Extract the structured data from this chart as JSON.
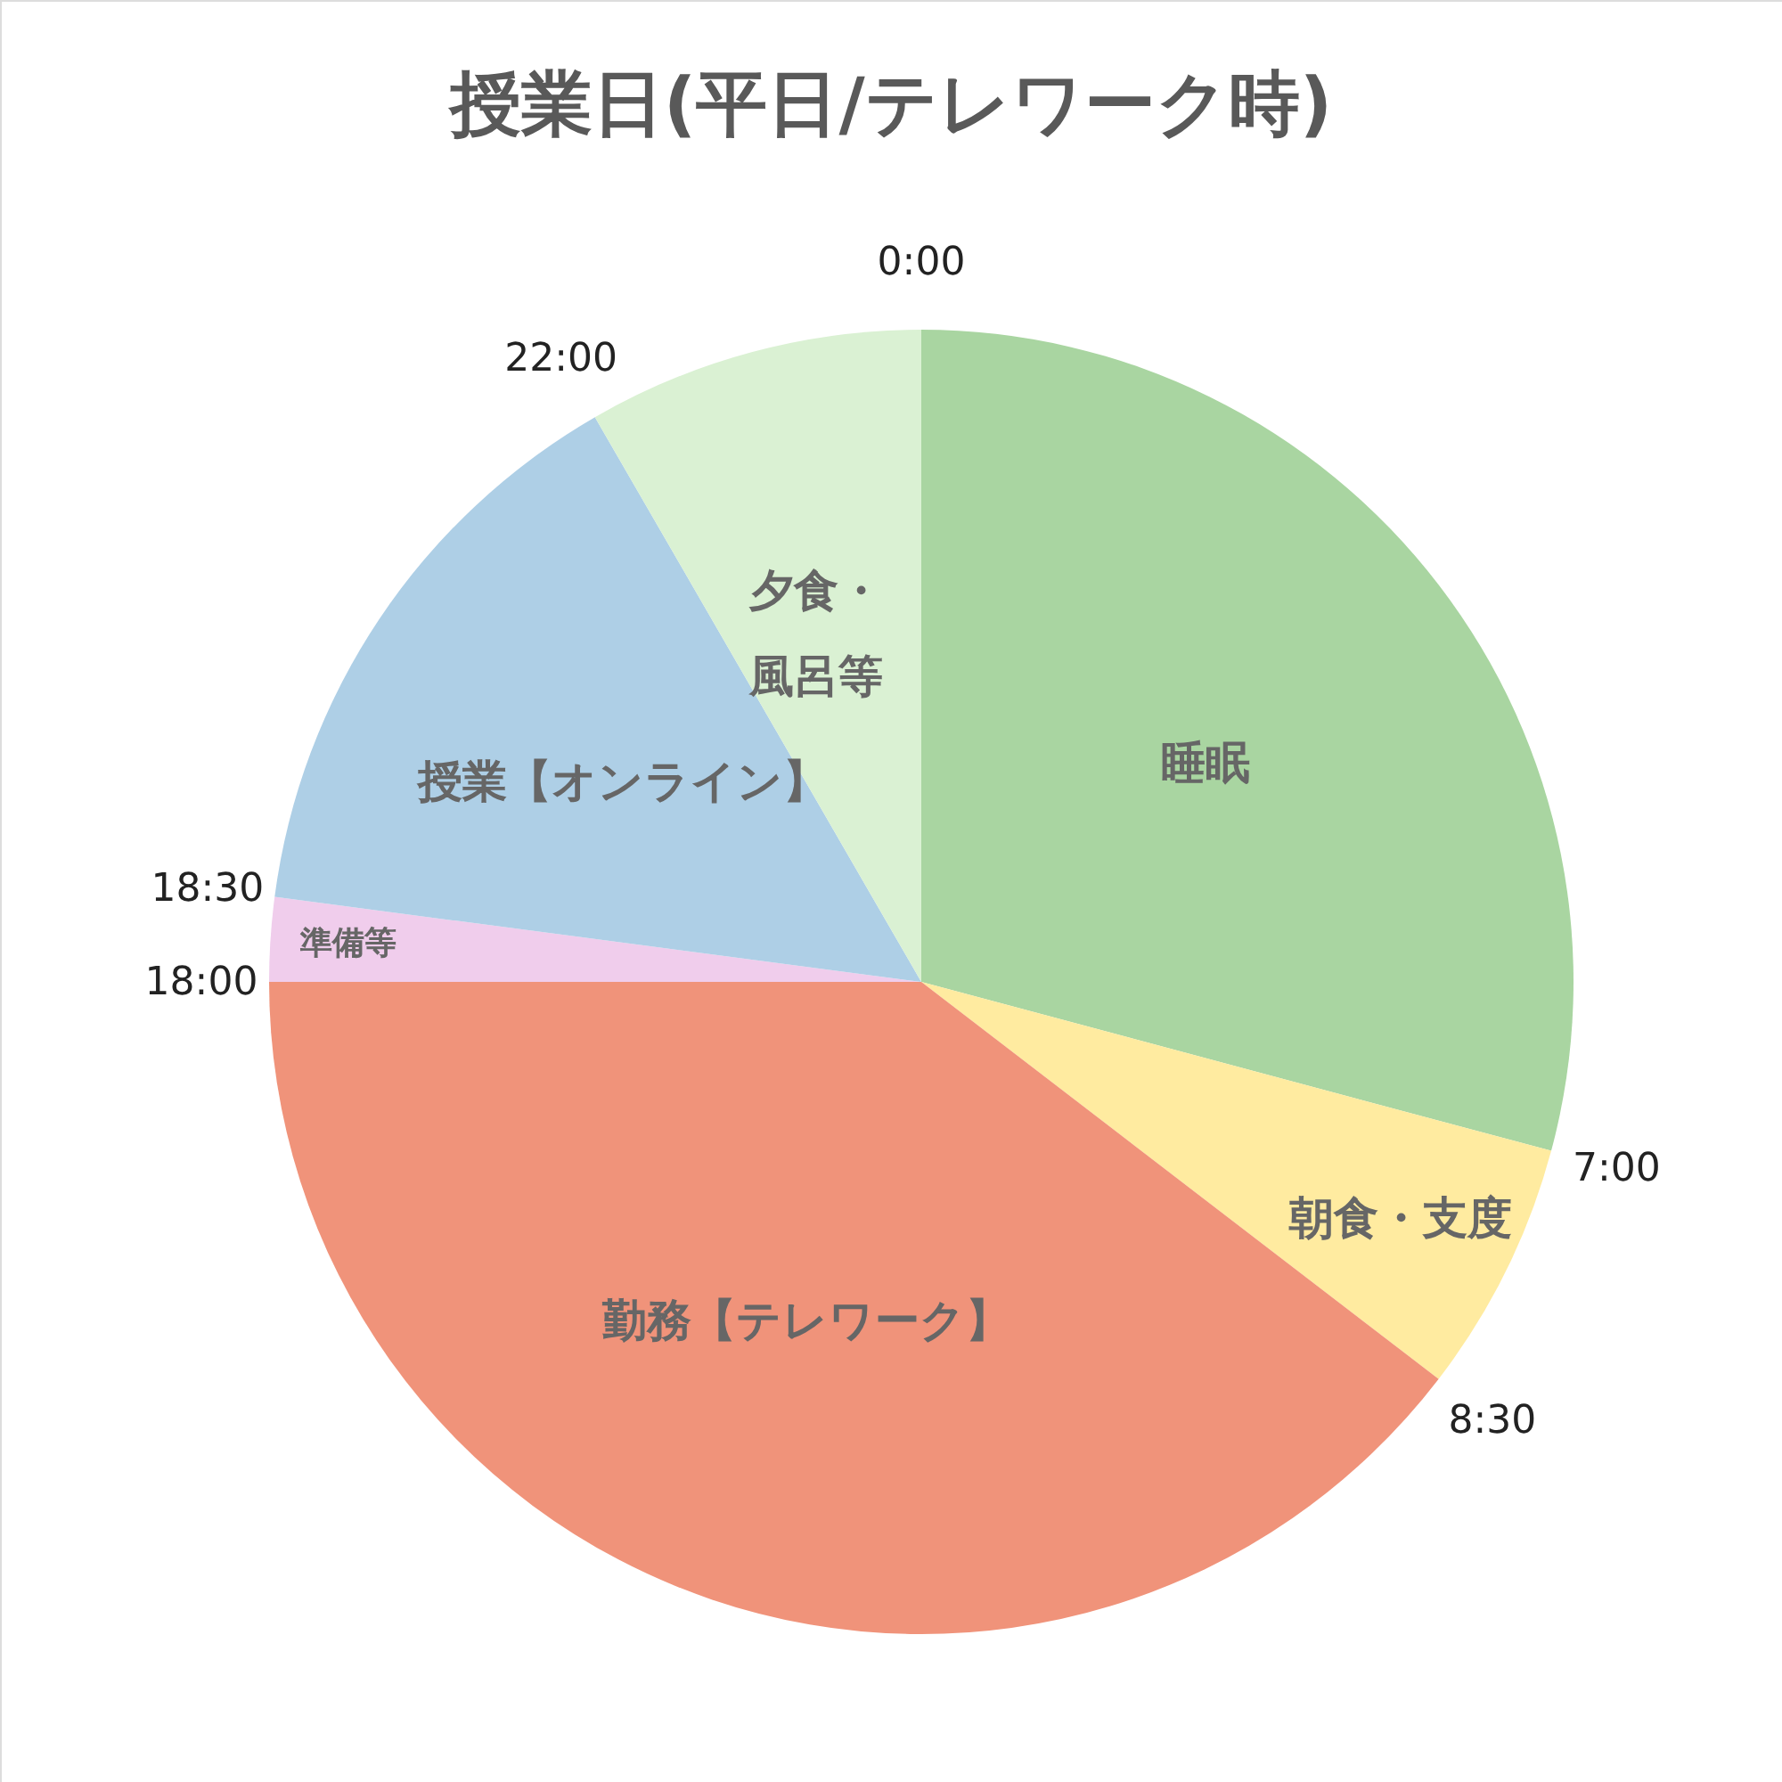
{
  "chart_data": {
    "type": "pie",
    "title": "授業日(平日/テレワーク時)",
    "categories": [
      "睡眠",
      "朝食・支度",
      "勤務【テレワーク】",
      "準備等",
      "授業【オンライン】",
      "夕食・風呂等"
    ],
    "values": [
      29.17,
      6.25,
      39.58,
      2.08,
      14.58,
      8.34
    ],
    "colors": [
      "#a9d5a1",
      "#ffeba0",
      "#f0937a",
      "#f0cdec",
      "#aecfe6",
      "#daf1d3"
    ],
    "annotations": [
      "0:00",
      "7:00",
      "8:30",
      "18:00",
      "18:30",
      "22:00"
    ],
    "legend": false
  }
}
